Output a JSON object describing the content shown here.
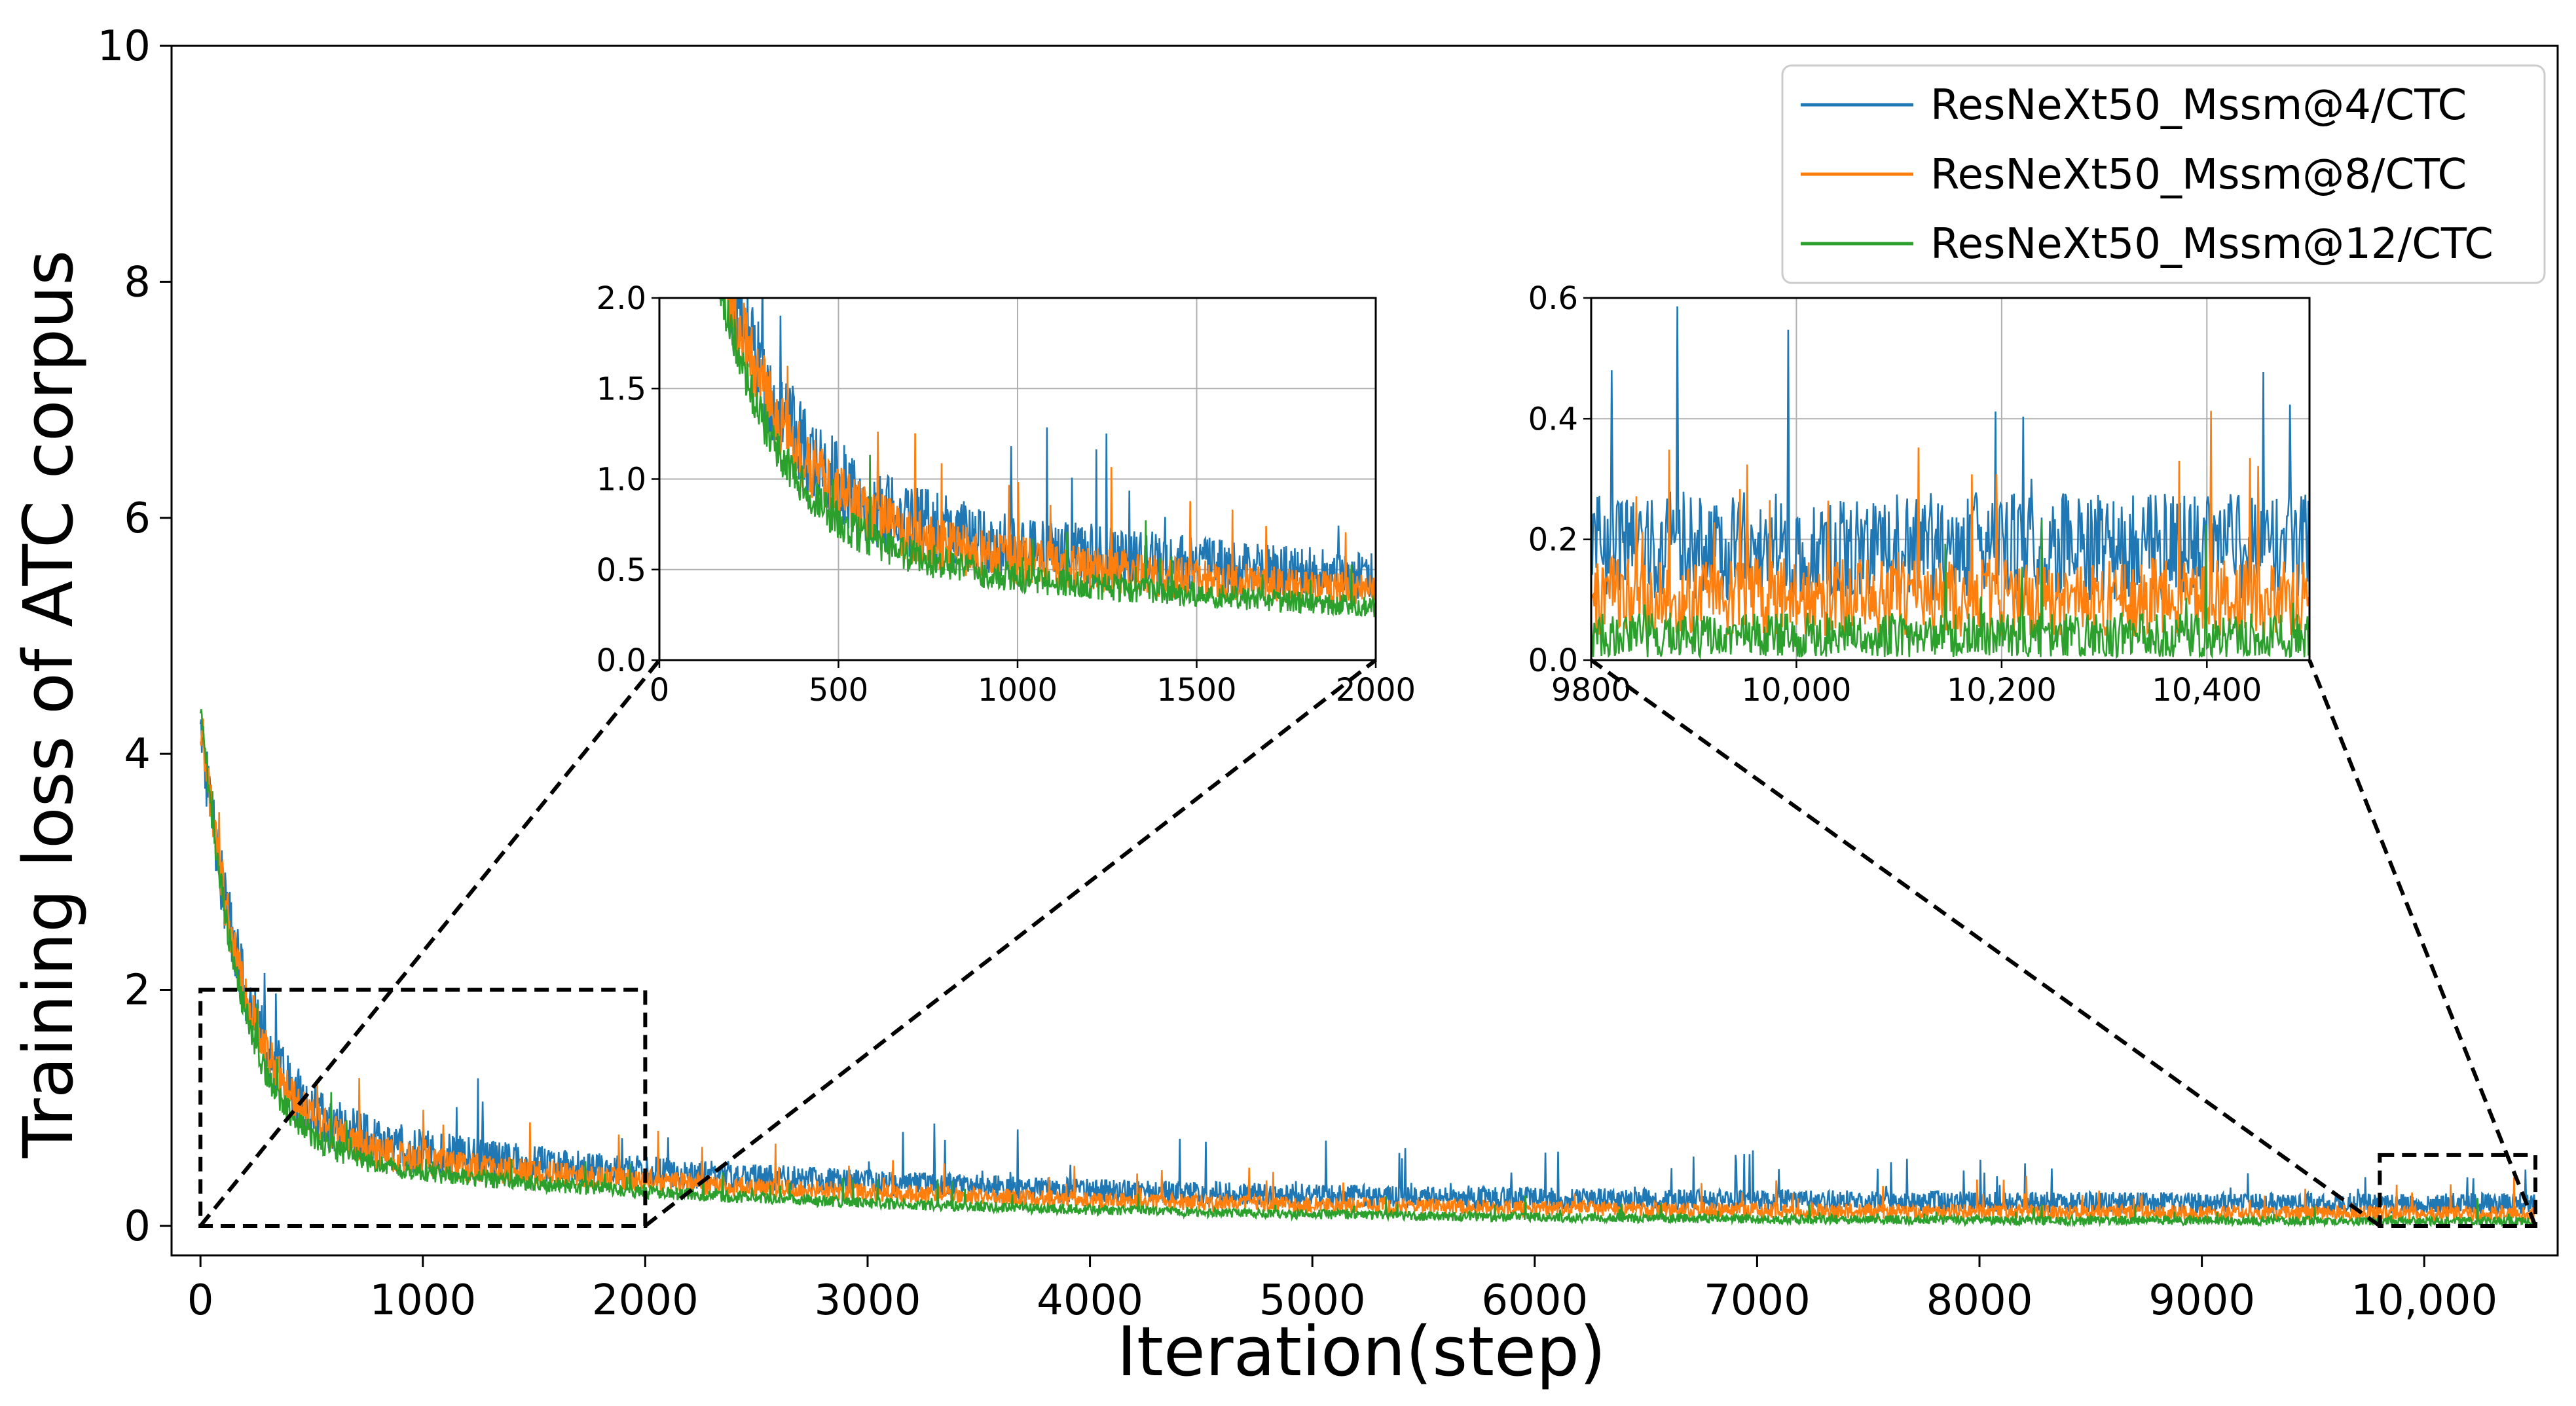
{
  "chart_data": {
    "type": "line",
    "xlabel": "Iteration(step)",
    "ylabel": "Training loss of ATC corpus",
    "xlim": [
      -130,
      10600
    ],
    "ylim": [
      -0.25,
      10
    ],
    "xticks": [
      0,
      1000,
      2000,
      3000,
      4000,
      5000,
      6000,
      7000,
      8000,
      9000,
      10000
    ],
    "xtick_labels": [
      "0",
      "1000",
      "2000",
      "3000",
      "4000",
      "5000",
      "6000",
      "7000",
      "8000",
      "9000",
      "10,000"
    ],
    "yticks": [
      0,
      2,
      4,
      6,
      8,
      10
    ],
    "ytick_labels": [
      "0",
      "2",
      "4",
      "6",
      "8",
      "10"
    ],
    "grid": false,
    "legend_position": "top-right",
    "n_points": 10500,
    "series": [
      {
        "name": "ResNeXt50_Mssm@4/CTC",
        "color": "#1f77b4",
        "initial_loss": 5.2,
        "final_mean_loss": 0.2,
        "decay_steps": 2500,
        "noise_amplitude": 0.18
      },
      {
        "name": "ResNeXt50_Mssm@8/CTC",
        "color": "#ff7f0e",
        "initial_loss": 5.3,
        "final_mean_loss": 0.1,
        "decay_steps": 2500,
        "noise_amplitude": 0.13
      },
      {
        "name": "ResNeXt50_Mssm@12/CTC",
        "color": "#2ca02c",
        "initial_loss": 5.5,
        "final_mean_loss": 0.03,
        "decay_steps": 2200,
        "noise_amplitude": 0.08
      }
    ],
    "zoom_regions": [
      {
        "x_range": [
          0,
          2000
        ],
        "y_range": [
          0,
          2
        ]
      },
      {
        "x_range": [
          9800,
          10500
        ],
        "y_range": [
          0,
          0.6
        ]
      }
    ],
    "insets": [
      {
        "x_range": [
          0,
          2000
        ],
        "y_range": [
          0,
          2.0
        ],
        "xticks": [
          0,
          500,
          1000,
          1500,
          2000
        ],
        "xtick_labels": [
          "0",
          "500",
          "1000",
          "1500",
          "2000"
        ],
        "yticks": [
          0,
          0.5,
          1.0,
          1.5,
          2.0
        ],
        "ytick_labels": [
          "0.0",
          "0.5",
          "1.0",
          "1.5",
          "2.0"
        ],
        "grid": true
      },
      {
        "x_range": [
          9800,
          10500
        ],
        "y_range": [
          0,
          0.6
        ],
        "xticks": [
          9800,
          10000,
          10200,
          10400
        ],
        "xtick_labels": [
          "9800",
          "10,000",
          "10,200",
          "10,400"
        ],
        "yticks": [
          0,
          0.2,
          0.4,
          0.6
        ],
        "ytick_labels": [
          "0.0",
          "0.2",
          "0.4",
          "0.6"
        ],
        "grid": true
      }
    ]
  }
}
